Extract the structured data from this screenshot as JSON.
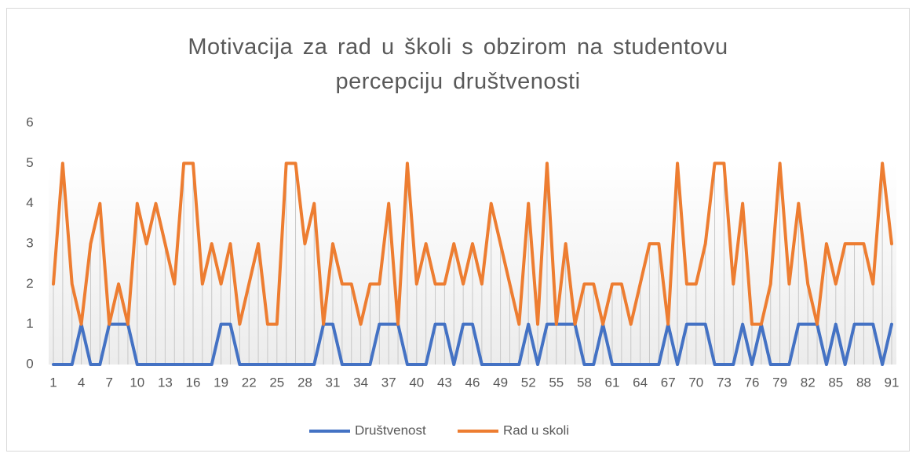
{
  "chart_data": {
    "type": "line",
    "title": "Motivacija za rad u školi s obzirom na studentovu percepciju društvenosti",
    "categories": [
      1,
      null,
      null,
      4,
      null,
      null,
      7,
      null,
      null,
      10,
      null,
      null,
      13,
      null,
      null,
      16,
      null,
      null,
      19,
      null,
      null,
      22,
      null,
      null,
      25,
      null,
      null,
      28,
      null,
      null,
      31,
      null,
      null,
      34,
      null,
      null,
      37,
      null,
      null,
      40,
      null,
      null,
      43,
      null,
      null,
      46,
      null,
      null,
      49,
      null,
      null,
      52,
      null,
      null,
      55,
      null,
      null,
      58,
      null,
      null,
      61,
      null,
      null,
      64,
      null,
      null,
      67,
      null,
      null,
      70,
      null,
      null,
      73,
      null,
      null,
      76,
      null,
      null,
      79,
      null,
      null,
      82,
      null,
      null,
      85,
      null,
      null,
      88,
      null,
      null,
      91
    ],
    "series": [
      {
        "name": "Društvenost",
        "color": "#4472c4",
        "values": [
          0,
          0,
          0,
          1,
          0,
          0,
          1,
          1,
          1,
          0,
          0,
          0,
          0,
          0,
          0,
          0,
          0,
          0,
          1,
          1,
          0,
          0,
          0,
          0,
          0,
          0,
          0,
          0,
          0,
          1,
          1,
          0,
          0,
          0,
          0,
          1,
          1,
          1,
          0,
          0,
          0,
          1,
          1,
          0,
          1,
          1,
          0,
          0,
          0,
          0,
          0,
          1,
          0,
          1,
          1,
          1,
          1,
          0,
          0,
          1,
          0,
          0,
          0,
          0,
          0,
          0,
          1,
          0,
          1,
          1,
          1,
          0,
          0,
          0,
          1,
          0,
          1,
          0,
          0,
          0,
          1,
          1,
          1,
          0,
          1,
          0,
          1,
          1,
          1,
          0,
          1
        ]
      },
      {
        "name": "Rad u skoli",
        "color": "#ed7d31",
        "values": [
          2,
          5,
          2,
          1,
          3,
          4,
          1,
          2,
          1,
          4,
          3,
          4,
          3,
          2,
          5,
          5,
          2,
          3,
          2,
          3,
          1,
          2,
          3,
          1,
          1,
          5,
          5,
          3,
          4,
          1,
          3,
          2,
          2,
          1,
          2,
          2,
          4,
          1,
          5,
          2,
          3,
          2,
          2,
          3,
          2,
          3,
          2,
          4,
          3,
          2,
          1,
          4,
          1,
          5,
          1,
          3,
          1,
          2,
          2,
          1,
          2,
          2,
          1,
          2,
          3,
          3,
          1,
          5,
          2,
          2,
          3,
          5,
          5,
          2,
          4,
          1,
          1,
          2,
          5,
          2,
          4,
          2,
          1,
          3,
          2,
          3,
          3,
          3,
          2,
          5,
          3
        ]
      }
    ],
    "ylim": [
      0,
      6
    ],
    "yticks": [
      0,
      1,
      2,
      3,
      4,
      5,
      6
    ],
    "drop_lines": true,
    "legend": "bottom"
  }
}
